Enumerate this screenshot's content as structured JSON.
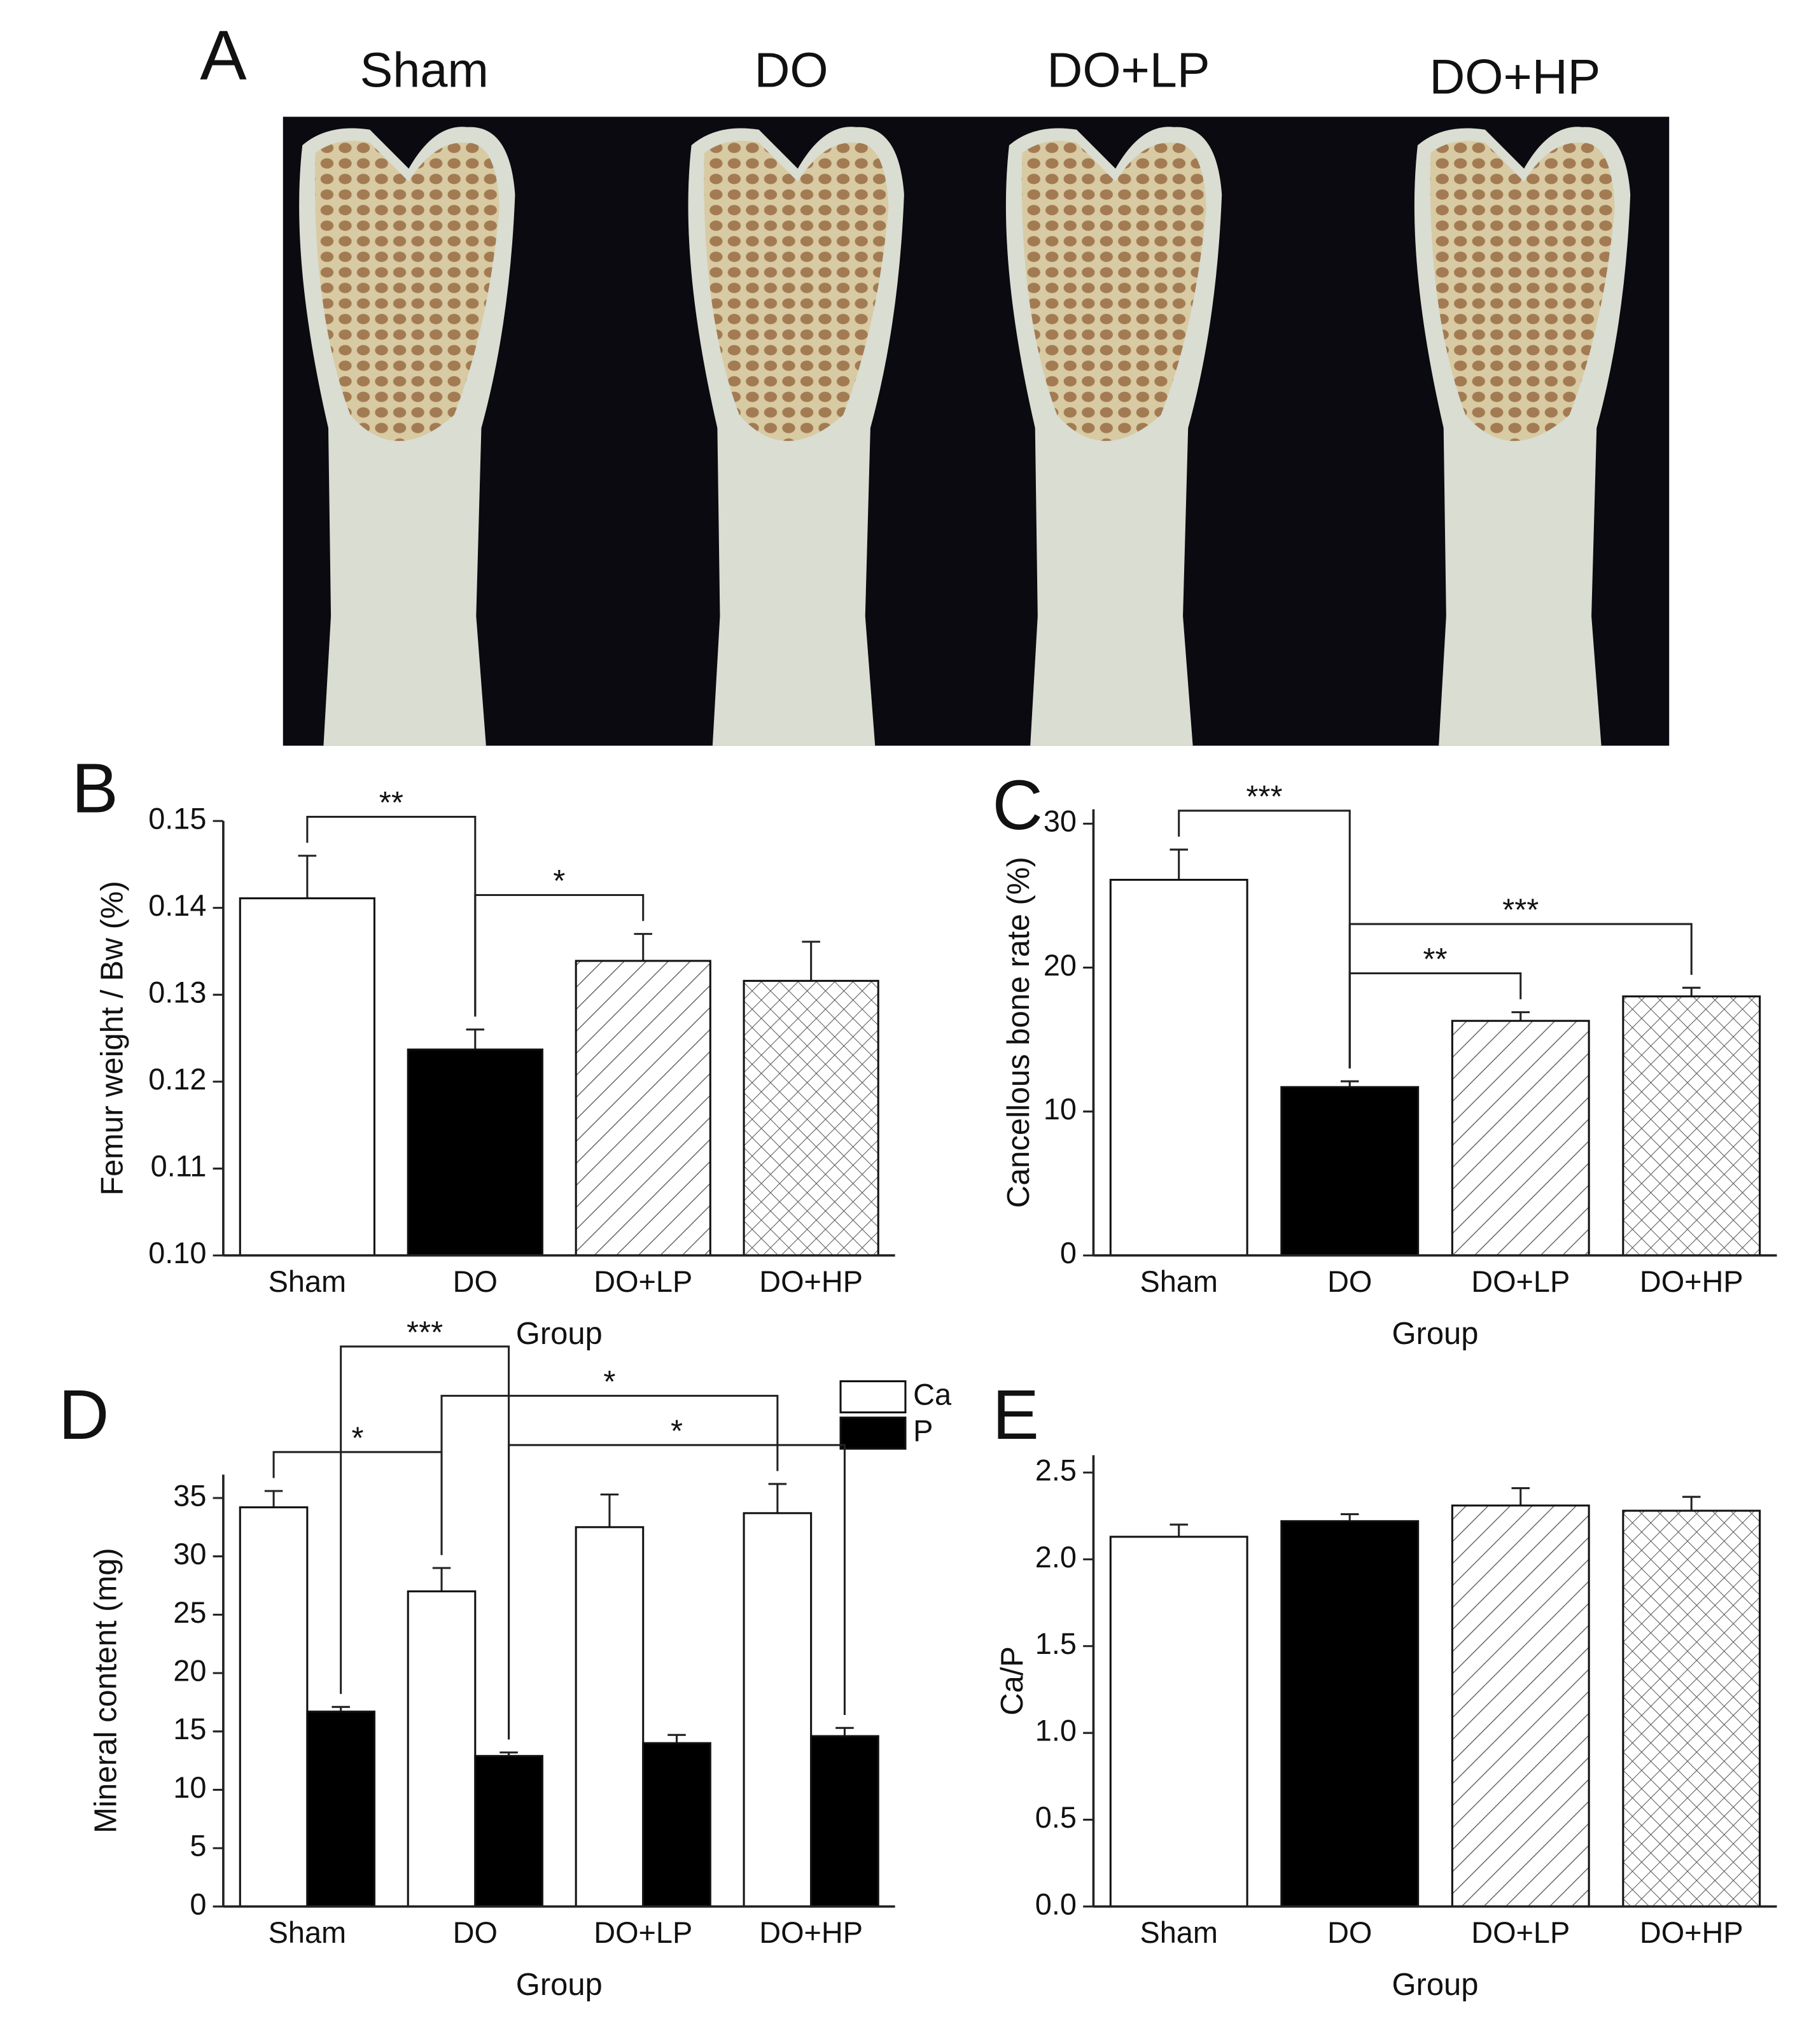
{
  "photo_panel": {
    "label": "A",
    "groups": [
      "Sham",
      "DO",
      "DO+LP",
      "DO+HP"
    ]
  },
  "chart_data": [
    {
      "type": "bar",
      "panel": "B",
      "ylabel": "Femur weight / Bw (%)",
      "xlabel": "Group",
      "categories": [
        "Sham",
        "DO",
        "DO+LP",
        "DO+HP"
      ],
      "series": [
        {
          "values": [
            0.1411,
            0.1237,
            0.1339,
            0.1316
          ],
          "errors": [
            0.0049,
            0.0023,
            0.0031,
            0.0045
          ],
          "fills": [
            "white",
            "black",
            "hatch",
            "crosshatch"
          ]
        }
      ],
      "ylim": [
        0.1,
        0.15
      ],
      "yticks": [
        {
          "value": 0.1,
          "label": "0.10"
        },
        0.11,
        0.12,
        0.13,
        0.14,
        0.15
      ],
      "annotations": [
        {
          "text": "**",
          "between": [
            "Sham",
            "DO"
          ]
        },
        {
          "text": "*",
          "between": [
            "DO",
            "DO+LP"
          ]
        }
      ]
    },
    {
      "type": "bar",
      "panel": "C",
      "ylabel": "Cancellous bone rate (%)",
      "xlabel": "Group",
      "categories": [
        "Sham",
        "DO",
        "DO+LP",
        "DO+HP"
      ],
      "series": [
        {
          "values": [
            26.1,
            11.7,
            16.3,
            18.0
          ],
          "errors": [
            2.1,
            0.4,
            0.6,
            0.6
          ],
          "fills": [
            "white",
            "black",
            "hatch",
            "crosshatch"
          ]
        }
      ],
      "ylim": [
        0,
        31
      ],
      "yticks": [
        0,
        10,
        20,
        30
      ],
      "annotations": [
        {
          "text": "**",
          "between": [
            "DO",
            "DO+LP"
          ]
        },
        {
          "text": "***",
          "between": [
            "DO",
            "DO+HP"
          ]
        },
        {
          "text": "***",
          "between": [
            "Sham",
            "DO"
          ]
        }
      ]
    },
    {
      "type": "bar",
      "panel": "D",
      "ylabel": "Mineral content (mg)",
      "xlabel": "Group",
      "categories": [
        "Sham",
        "DO",
        "DO+LP",
        "DO+HP"
      ],
      "series": [
        {
          "name": "Ca",
          "color": "white",
          "values": [
            34.2,
            27.0,
            32.5,
            33.7
          ],
          "errors": [
            1.4,
            2.0,
            2.8,
            2.5
          ]
        },
        {
          "name": "P",
          "color": "black",
          "values": [
            16.7,
            12.9,
            14.0,
            14.6
          ],
          "errors": [
            0.4,
            0.3,
            0.7,
            0.7
          ]
        }
      ],
      "ylim": [
        0,
        37
      ],
      "yticks": [
        0,
        5,
        10,
        15,
        20,
        25,
        30,
        35
      ],
      "legend": "top-right",
      "annotations": [
        {
          "text": "*",
          "between": [
            "DO",
            "DO+HP"
          ],
          "series": [
            "P",
            "P"
          ]
        },
        {
          "text": "*",
          "between": [
            "Sham",
            "DO"
          ],
          "series": [
            "Ca",
            "Ca"
          ]
        },
        {
          "text": "*",
          "between": [
            "DO",
            "DO+HP"
          ],
          "series": [
            "Ca",
            "Ca"
          ]
        },
        {
          "text": "***",
          "between": [
            "Sham",
            "DO"
          ],
          "series": [
            "P",
            "P"
          ]
        }
      ]
    },
    {
      "type": "bar",
      "panel": "E",
      "ylabel": "Ca/P",
      "xlabel": "Group",
      "categories": [
        "Sham",
        "DO",
        "DO+LP",
        "DO+HP"
      ],
      "series": [
        {
          "values": [
            2.13,
            2.22,
            2.31,
            2.28
          ],
          "errors": [
            0.07,
            0.04,
            0.1,
            0.08
          ],
          "fills": [
            "white",
            "black",
            "hatch",
            "crosshatch"
          ]
        }
      ],
      "ylim": [
        0,
        2.6
      ],
      "yticks": [
        {
          "value": 0,
          "label": "0.0"
        },
        0.5,
        {
          "value": 1,
          "label": "1.0"
        },
        1.5,
        {
          "value": 2,
          "label": "2.0"
        },
        2.5
      ],
      "annotations": []
    }
  ]
}
